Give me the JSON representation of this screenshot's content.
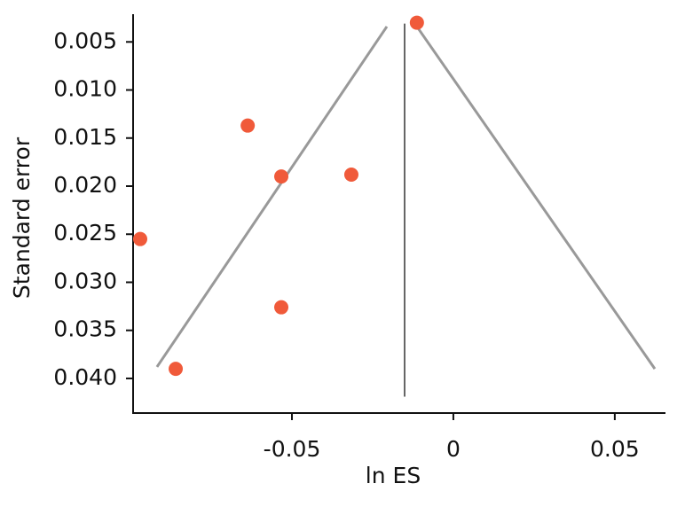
{
  "chart_data": {
    "type": "scatter",
    "x_label": "ln ES",
    "y_label": "Standard error",
    "xlim": [
      -0.0992,
      0.0657
    ],
    "ylim": [
      0.0023,
      0.0436
    ],
    "invert_y": true,
    "xticks": [
      -0.05,
      0,
      0.05
    ],
    "yticks": [
      0.005,
      {
        "value": 0.01,
        "label": "0.010"
      },
      0.015,
      {
        "value": 0.02,
        "label": "0.020"
      },
      0.025,
      {
        "value": 0.03,
        "label": "0.030"
      },
      0.035,
      {
        "value": 0.04,
        "label": "0.040"
      }
    ],
    "series": [
      {
        "color": "#f05a3a",
        "x": [
          -0.0113,
          -0.0637,
          -0.0533,
          -0.0316,
          -0.097,
          -0.0533,
          -0.086
        ],
        "values": [
          0.003,
          0.0137,
          0.019,
          0.0188,
          0.0255,
          0.0326,
          0.039
        ]
      }
    ],
    "reference_lines": [
      {
        "color": "#999999",
        "x": [
          -0.0918,
          -0.0206
        ],
        "y": [
          0.0388,
          0.0034
        ]
      },
      {
        "color": "#999999",
        "x": [
          -0.0113,
          0.0624
        ],
        "y": [
          0.0034,
          0.039
        ]
      },
      {
        "color": "#333333",
        "x": [
          -0.0151,
          -0.0151
        ],
        "y": [
          0.0031,
          0.0419
        ]
      }
    ]
  }
}
